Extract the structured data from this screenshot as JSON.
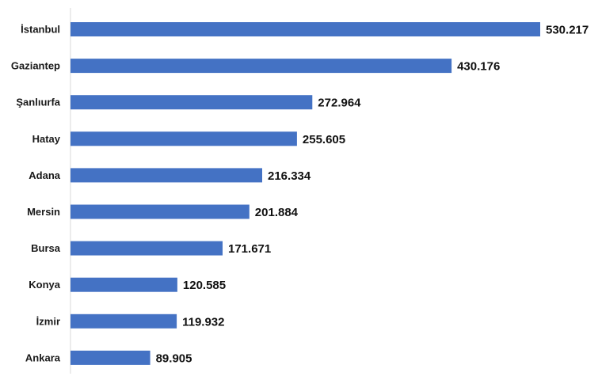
{
  "chart_data": {
    "type": "bar",
    "orientation": "horizontal",
    "categories": [
      "İstanbul",
      "Gaziantep",
      "Şanlıurfa",
      "Hatay",
      "Adana",
      "Mersin",
      "Bursa",
      "Konya",
      "İzmir",
      "Ankara"
    ],
    "values": [
      530217,
      430176,
      272964,
      255605,
      216334,
      201884,
      171671,
      120585,
      119932,
      89905
    ],
    "value_labels": [
      "530.217",
      "430.176",
      "272.964",
      "255.605",
      "216.334",
      "201.884",
      "171.671",
      "120.585",
      "119.932",
      "89.905"
    ],
    "title": "",
    "xlabel": "",
    "ylabel": "",
    "xlim": [
      0,
      530217
    ],
    "grid": false,
    "legend": "none",
    "bar_color": "#4472C4",
    "axis_color": "#d9d9d9"
  }
}
